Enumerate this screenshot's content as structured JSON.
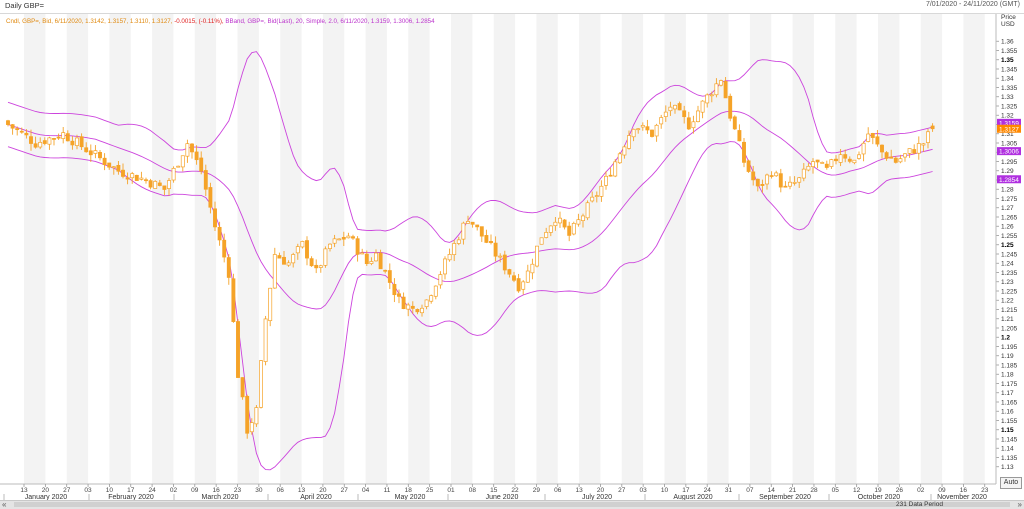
{
  "header": {
    "title": "Daily GBP=",
    "date_range": "7/01/2020 - 24/11/2020 (GMT)"
  },
  "colors": {
    "candle": "#f5a328",
    "band": "#cc44dd",
    "change": "#e02020",
    "badge_upper": "#b030e0",
    "badge_last": "#ff8800"
  },
  "legend": {
    "ohlc_text": "Cndl, GBP=, Bid, 6/11/2020, 1.3142, 1.3157, 1.3110, 1.3127,",
    "change_text": "-0.0015, (-0.11%),",
    "band_text": "BBand, GBP=, Bid(Last), 20, Simple, 2.0, 6/11/2020, 1.3159, 1.3006, 1.2854"
  },
  "axis": {
    "price_label": "Price",
    "currency_label": "USD"
  },
  "badges": {
    "upper": "1.3159",
    "last": "1.3127",
    "middle": "1.3006",
    "lower": "1.2854"
  },
  "footer": {
    "data_period": "231 Data Period",
    "auto_button": "Auto",
    "scroll_left": "«",
    "scroll_right": "»"
  },
  "chart_data": {
    "type": "candlestick",
    "title": "Daily GBP=",
    "ylim": [
      1.125,
      1.365
    ],
    "y_ticks": [
      1.13,
      1.135,
      1.14,
      1.145,
      1.15,
      1.155,
      1.16,
      1.165,
      1.17,
      1.175,
      1.18,
      1.185,
      1.19,
      1.195,
      1.2,
      1.205,
      1.21,
      1.215,
      1.22,
      1.225,
      1.23,
      1.235,
      1.24,
      1.245,
      1.25,
      1.255,
      1.26,
      1.265,
      1.27,
      1.275,
      1.28,
      1.285,
      1.29,
      1.295,
      1.3,
      1.305,
      1.31,
      1.315,
      1.32,
      1.325,
      1.33,
      1.335,
      1.34,
      1.345,
      1.35,
      1.355,
      1.36
    ],
    "y_ticks_bold": [
      1.15,
      1.2,
      1.25,
      1.35
    ],
    "x_day_labels": [
      "13",
      "20",
      "27",
      "03",
      "10",
      "17",
      "24",
      "02",
      "09",
      "16",
      "23",
      "30",
      "06",
      "13",
      "20",
      "27",
      "04",
      "11",
      "18",
      "25",
      "01",
      "08",
      "15",
      "22",
      "29",
      "06",
      "13",
      "20",
      "27",
      "03",
      "10",
      "17",
      "24",
      "31",
      "07",
      "14",
      "21",
      "28",
      "05",
      "12",
      "19",
      "26",
      "02",
      "09",
      "16",
      "23"
    ],
    "x_month_labels": [
      "January 2020",
      "February 2020",
      "March 2020",
      "April 2020",
      "May 2020",
      "June 2020",
      "July 2020",
      "August 2020",
      "September 2020",
      "October 2020",
      "November 2020"
    ],
    "close_anchors": [
      [
        0,
        1.315
      ],
      [
        6,
        1.305
      ],
      [
        12,
        1.31
      ],
      [
        18,
        1.3
      ],
      [
        24,
        1.29
      ],
      [
        30,
        1.285
      ],
      [
        34,
        1.28
      ],
      [
        39,
        1.305
      ],
      [
        42,
        1.29
      ],
      [
        45,
        1.26
      ],
      [
        48,
        1.235
      ],
      [
        50,
        1.18
      ],
      [
        52,
        1.15
      ],
      [
        54,
        1.16
      ],
      [
        56,
        1.21
      ],
      [
        58,
        1.245
      ],
      [
        61,
        1.24
      ],
      [
        64,
        1.25
      ],
      [
        67,
        1.235
      ],
      [
        70,
        1.25
      ],
      [
        74,
        1.255
      ],
      [
        78,
        1.24
      ],
      [
        80,
        1.245
      ],
      [
        85,
        1.22
      ],
      [
        88,
        1.215
      ],
      [
        91,
        1.22
      ],
      [
        94,
        1.235
      ],
      [
        97,
        1.25
      ],
      [
        100,
        1.265
      ],
      [
        103,
        1.255
      ],
      [
        106,
        1.245
      ],
      [
        109,
        1.235
      ],
      [
        111,
        1.228
      ],
      [
        113,
        1.235
      ],
      [
        116,
        1.255
      ],
      [
        119,
        1.265
      ],
      [
        122,
        1.255
      ],
      [
        126,
        1.27
      ],
      [
        130,
        1.285
      ],
      [
        133,
        1.3
      ],
      [
        136,
        1.315
      ],
      [
        140,
        1.31
      ],
      [
        144,
        1.325
      ],
      [
        148,
        1.315
      ],
      [
        152,
        1.33
      ],
      [
        155,
        1.34
      ],
      [
        157,
        1.32
      ],
      [
        160,
        1.295
      ],
      [
        163,
        1.28
      ],
      [
        166,
        1.29
      ],
      [
        169,
        1.28
      ],
      [
        172,
        1.285
      ],
      [
        175,
        1.295
      ],
      [
        178,
        1.29
      ],
      [
        181,
        1.3
      ],
      [
        184,
        1.295
      ],
      [
        187,
        1.31
      ],
      [
        190,
        1.3
      ],
      [
        193,
        1.295
      ],
      [
        196,
        1.3
      ],
      [
        199,
        1.305
      ],
      [
        201,
        1.3127
      ]
    ],
    "series": [
      {
        "name": "Cndl, GBP=, Bid",
        "kind": "candles",
        "last": [
          1.3142,
          1.3157,
          1.311,
          1.3127
        ]
      },
      {
        "name": "BBand Upper",
        "last": 1.3159
      },
      {
        "name": "BBand Middle",
        "last": 1.3006
      },
      {
        "name": "BBand Lower",
        "last": 1.2854
      }
    ],
    "bband": {
      "period": 20,
      "method": "Simple",
      "stddev": 2.0
    },
    "grid": true,
    "legend": "top-left"
  }
}
